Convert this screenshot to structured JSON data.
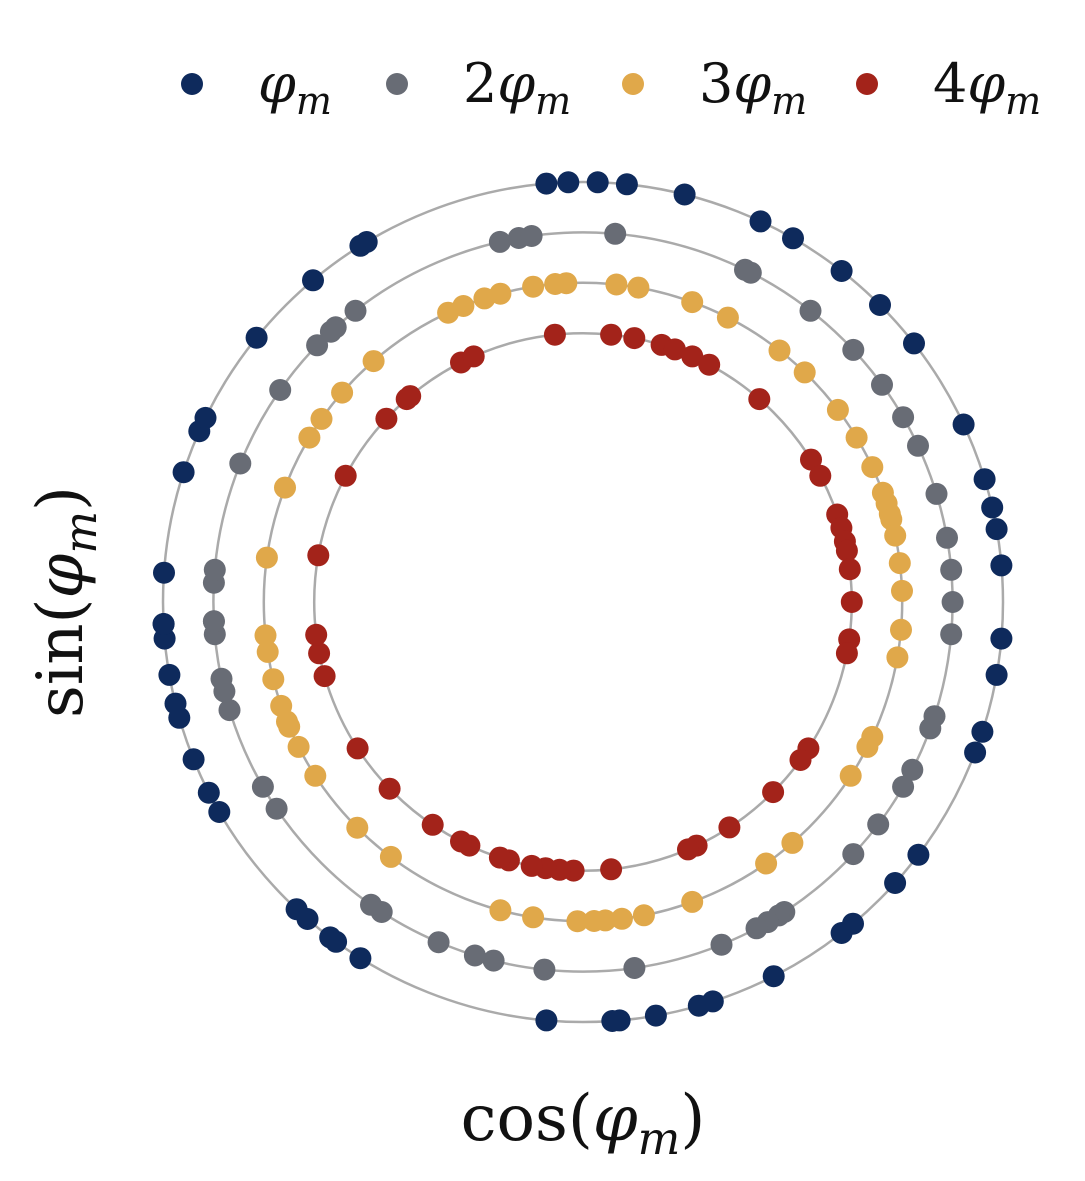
{
  "chart_data": {
    "type": "scatter",
    "title": "",
    "xlabel": "cos(φm)",
    "ylabel": "sin(φm)",
    "xlim": [
      -1.1,
      1.1
    ],
    "ylim": [
      -1.1,
      1.1
    ],
    "grid": false,
    "legend_position": "top",
    "ring_color": "#aaaaaa",
    "series": [
      {
        "name": "φm",
        "multiplier": 1,
        "label_coef": "",
        "color": "#0e2a5c",
        "radius": 1.0,
        "angles_deg": [
          95,
          92,
          88,
          84,
          76,
          65,
          60,
          52,
          45,
          38,
          25,
          17,
          13,
          10,
          5,
          -5,
          -10,
          -18,
          -21,
          -37,
          -42,
          -50,
          -52,
          -63,
          -72,
          -74,
          -80,
          -85,
          -86,
          -95,
          -122,
          -126,
          -127,
          -131,
          -133,
          -150,
          -153,
          -158,
          -164,
          -166,
          -170,
          -175,
          -177,
          -177,
          176,
          162,
          156,
          154,
          141,
          130,
          122,
          121
        ]
      },
      {
        "name": "2φm",
        "multiplier": 2,
        "label_coef": "2",
        "color": "#686c75",
        "radius": 0.88,
        "angles_deg": [
          103,
          100,
          98,
          85,
          64,
          63,
          52,
          43,
          36,
          30,
          25,
          17,
          10,
          5,
          0,
          -5,
          -18,
          -20,
          -27,
          -30,
          -37,
          -43,
          -57,
          -58,
          -60,
          -62,
          -68,
          -82,
          -96,
          -104,
          -107,
          -113,
          -123,
          -125,
          -146,
          -150,
          -163,
          -166,
          -168,
          -175,
          -177,
          -177,
          177,
          175,
          158,
          145,
          136,
          133,
          132,
          128
        ]
      },
      {
        "name": "3φm",
        "multiplier": 3,
        "label_coef": "3",
        "color": "#e0a84a",
        "radius": 0.76,
        "angles_deg": [
          115,
          112,
          108,
          105,
          99,
          95,
          93,
          84,
          80,
          70,
          63,
          52,
          46,
          37,
          31,
          25,
          20,
          18,
          16,
          15,
          12,
          7,
          2,
          -5,
          -10,
          -25,
          -27,
          -33,
          -49,
          -55,
          -70,
          -79,
          -83,
          -86,
          -88,
          -91,
          -99,
          -105,
          -127,
          -135,
          -147,
          -153,
          -157,
          -158,
          -161,
          -166,
          -171,
          -174,
          172,
          159,
          149,
          145,
          139,
          131
        ]
      },
      {
        "name": "4φm",
        "multiplier": 4,
        "label_coef": "4",
        "color": "#a3231a",
        "radius": 0.64,
        "angles_deg": [
          117,
          114,
          96,
          84,
          79,
          73,
          70,
          66,
          62,
          49,
          32,
          28,
          19,
          16,
          13,
          11,
          7,
          0,
          -8,
          -11,
          -33,
          -36,
          -45,
          -57,
          -65,
          -67,
          -84,
          -92,
          -95,
          -98,
          -101,
          -106,
          -108,
          -115,
          -117,
          -124,
          -136,
          -147,
          -164,
          -169,
          -173,
          170,
          152,
          137,
          131,
          130
        ]
      }
    ]
  }
}
